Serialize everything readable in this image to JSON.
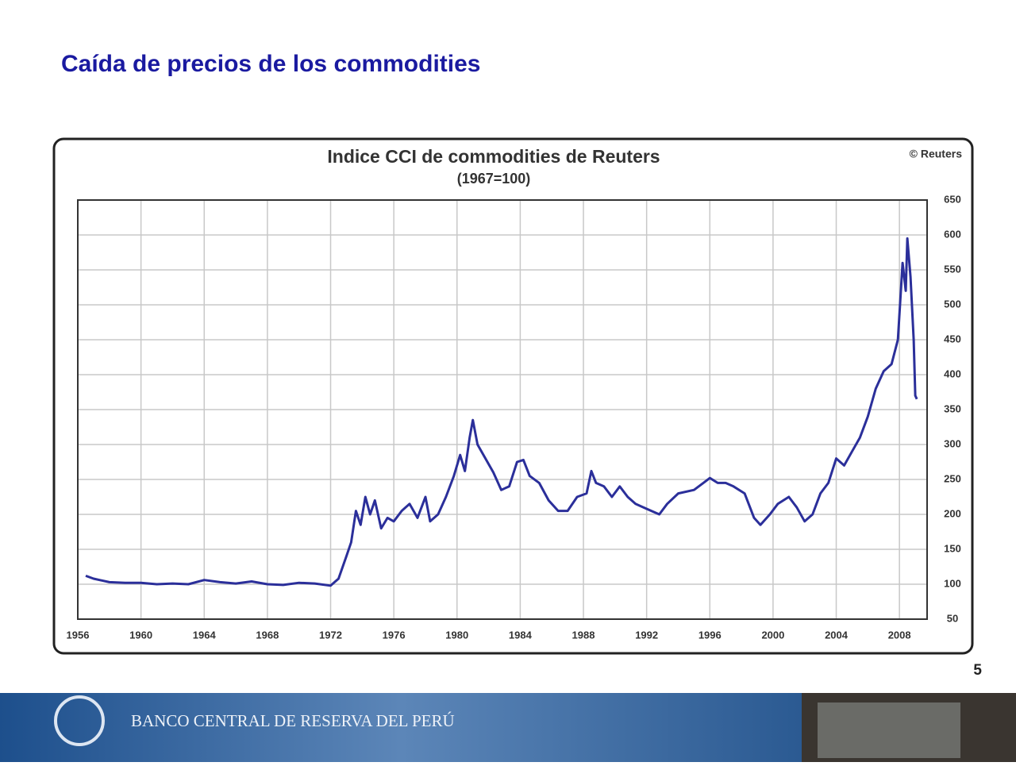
{
  "slide_title": "Caída de precios de los commodities",
  "page_number": "5",
  "footer": "BANCO CENTRAL DE RESERVA DEL PERÚ",
  "chart_data": {
    "type": "line",
    "title": "Indice CCI de commodities de Reuters",
    "subtitle": "(1967=100)",
    "credit": "© Reuters",
    "color": "#2b2f9a",
    "grid": true,
    "xlim": [
      1956,
      2009.75
    ],
    "ylim": [
      50,
      650
    ],
    "xticks": [
      1956,
      1960,
      1964,
      1968,
      1972,
      1976,
      1980,
      1984,
      1988,
      1992,
      1996,
      2000,
      2004,
      2008
    ],
    "yticks": [
      50,
      100,
      150,
      200,
      250,
      300,
      350,
      400,
      450,
      500,
      550,
      600,
      650
    ],
    "x": [
      1956.5,
      1957,
      1958,
      1959,
      1960,
      1961,
      1962,
      1963,
      1964,
      1965,
      1966,
      1967,
      1968,
      1969,
      1970,
      1971,
      1972,
      1972.5,
      1973,
      1973.3,
      1973.6,
      1973.9,
      1974.2,
      1974.5,
      1974.8,
      1975.2,
      1975.6,
      1976,
      1976.5,
      1977,
      1977.5,
      1978,
      1978.3,
      1978.8,
      1979.3,
      1979.8,
      1980.2,
      1980.5,
      1980.8,
      1981,
      1981.3,
      1981.8,
      1982.3,
      1982.8,
      1983.3,
      1983.8,
      1984.2,
      1984.6,
      1985.2,
      1985.8,
      1986.4,
      1987,
      1987.6,
      1988.2,
      1988.5,
      1988.8,
      1989.3,
      1989.8,
      1990.3,
      1990.8,
      1991.3,
      1991.8,
      1992.3,
      1992.8,
      1993.3,
      1994,
      1995,
      1996,
      1996.5,
      1997,
      1997.5,
      1998.2,
      1998.8,
      1999.2,
      1999.8,
      2000.3,
      2001,
      2001.5,
      2002,
      2002.5,
      2003,
      2003.5,
      2004,
      2004.5,
      2005,
      2005.5,
      2006,
      2006.5,
      2007,
      2007.5,
      2007.9,
      2008.2,
      2008.4,
      2008.5,
      2008.7,
      2008.9,
      2009,
      2009.1
    ],
    "values": [
      112,
      108,
      103,
      102,
      102,
      100,
      101,
      100,
      106,
      103,
      101,
      104,
      100,
      99,
      102,
      101,
      98,
      108,
      140,
      160,
      205,
      185,
      225,
      200,
      220,
      180,
      195,
      190,
      205,
      215,
      195,
      225,
      190,
      200,
      225,
      255,
      285,
      262,
      310,
      335,
      300,
      280,
      260,
      235,
      240,
      275,
      278,
      255,
      245,
      220,
      205,
      205,
      225,
      230,
      262,
      245,
      240,
      225,
      240,
      225,
      215,
      210,
      205,
      200,
      215,
      230,
      235,
      252,
      245,
      245,
      240,
      230,
      195,
      185,
      200,
      215,
      225,
      210,
      190,
      200,
      230,
      245,
      280,
      270,
      290,
      310,
      340,
      380,
      405,
      415,
      450,
      560,
      520,
      595,
      540,
      450,
      370,
      365
    ]
  }
}
